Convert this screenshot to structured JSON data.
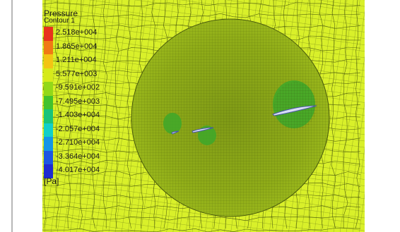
{
  "legend": {
    "title": "Pressure",
    "subtitle": "Contour 1",
    "units": "[Pa]",
    "levels": [
      {
        "label": "2.518e+004",
        "color": "#e8321c"
      },
      {
        "label": "1.865e+004",
        "color": "#f07a14"
      },
      {
        "label": "1.211e+004",
        "color": "#f3c414"
      },
      {
        "label": "5.577e+003",
        "color": "#d6ea1a"
      },
      {
        "label": "-9.591e+002",
        "color": "#93d818"
      },
      {
        "label": "-7.495e+003",
        "color": "#42c22c"
      },
      {
        "label": "-1.403e+004",
        "color": "#18c37a"
      },
      {
        "label": "-2.057e+004",
        "color": "#12cfc8"
      },
      {
        "label": "-2.710e+004",
        "color": "#1496e6"
      },
      {
        "label": "-3.364e+004",
        "color": "#1c57e2"
      },
      {
        "label": "-4.017e+004",
        "color": "#1e2cd0"
      }
    ]
  },
  "colors": {
    "background_field": "#d9f02a",
    "rotor_disk": "#8fac18",
    "mesh_line": "#2c3a06",
    "suction_region": "#3da82a",
    "blade": "#d8def4"
  }
}
